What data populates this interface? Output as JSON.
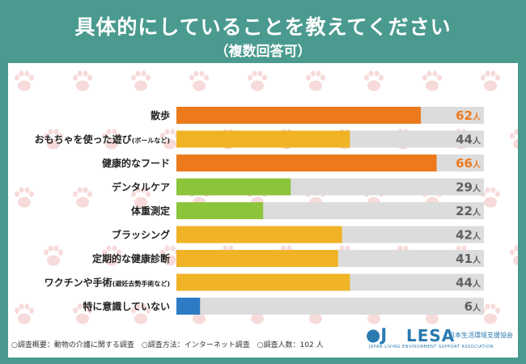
{
  "header": {
    "title": "具体的にしていることを教えてください",
    "subtitle": "（複数回答可）"
  },
  "chart_data": {
    "type": "bar",
    "orientation": "horizontal",
    "categories": [
      "散歩",
      "おもちゃを使った遊び(ボールなど)",
      "健康的なフード",
      "デンタルケア",
      "体重測定",
      "ブラッシング",
      "定期的な健康診断",
      "ワクチンや手術(避妊去勢手術など)",
      "特に意識していない"
    ],
    "values": [
      62,
      44,
      66,
      29,
      22,
      42,
      41,
      44,
      6
    ],
    "value_labels": [
      "62",
      "44",
      "66",
      "29",
      "22",
      "42",
      "41",
      "44",
      "6"
    ],
    "unit": "人",
    "xlim": [
      0,
      78
    ],
    "bar_colors": [
      "#ec7a1c",
      "#efb325",
      "#ec7a1c",
      "#8cc43c",
      "#8cc43c",
      "#efb325",
      "#efb325",
      "#efb325",
      "#2d7bc4"
    ],
    "label_colors": [
      "#ec7a1c",
      "#606060",
      "#ec7a1c",
      "#606060",
      "#606060",
      "#606060",
      "#606060",
      "#606060",
      "#606060"
    ],
    "track_color": "#dcdcdc"
  },
  "footer": {
    "note": "○調査概要：動物の介護に関する調査　○調査方法：インターネット調査　○調査人数：102 人"
  },
  "logo": {
    "mark": "●J",
    "name": "LESA",
    "jp_name": "日本生活環境支援協会",
    "en_name": "JAPAN LIVING ENVIRONMENT SUPPORT ASSOCIATION"
  }
}
